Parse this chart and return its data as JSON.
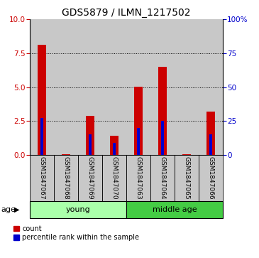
{
  "title": "GDS5879 / ILMN_1217502",
  "samples": [
    "GSM1847067",
    "GSM1847068",
    "GSM1847069",
    "GSM1847070",
    "GSM1847063",
    "GSM1847064",
    "GSM1847065",
    "GSM1847066"
  ],
  "red_values": [
    8.1,
    0.02,
    2.9,
    1.4,
    5.05,
    6.5,
    0.02,
    3.2
  ],
  "blue_values": [
    2.7,
    0.0,
    1.5,
    0.9,
    2.0,
    2.5,
    0.0,
    1.5
  ],
  "ylim_left": [
    0,
    10
  ],
  "ylim_right": [
    0,
    100
  ],
  "yticks_left": [
    0,
    2.5,
    5,
    7.5,
    10
  ],
  "yticks_right": [
    0,
    25,
    50,
    75,
    100
  ],
  "ytick_labels_right": [
    "0",
    "25",
    "50",
    "75",
    "100%"
  ],
  "groups": [
    {
      "label": "young",
      "start": 0,
      "end": 4,
      "color": "#AAFFAA"
    },
    {
      "label": "middle age",
      "start": 4,
      "end": 8,
      "color": "#44CC44"
    }
  ],
  "bar_bg_color": "#C8C8C8",
  "red_color": "#CC0000",
  "blue_color": "#0000CC",
  "legend_count_label": "count",
  "legend_pct_label": "percentile rank within the sample",
  "age_label": "age",
  "title_fontsize": 10,
  "tick_fontsize": 7.5,
  "label_fontsize": 6.5,
  "group_fontsize": 8,
  "legend_fontsize": 7
}
